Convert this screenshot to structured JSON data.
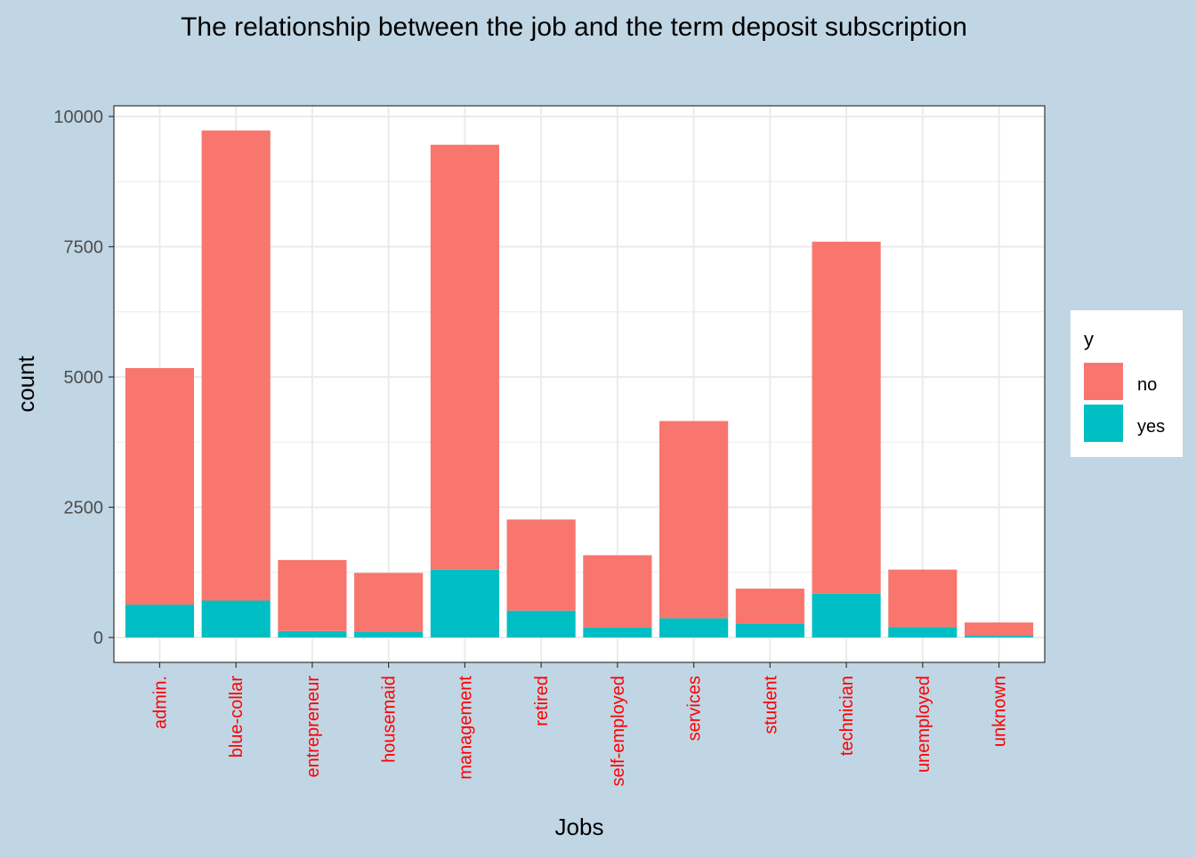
{
  "chart_data": {
    "type": "bar",
    "stacked": true,
    "title": "The relationship between the job and the term deposit subscription",
    "xlabel": "Jobs",
    "ylabel": "count",
    "categories": [
      "admin.",
      "blue-collar",
      "entrepreneur",
      "housemaid",
      "management",
      "retired",
      "self-employed",
      "services",
      "student",
      "technician",
      "unemployed",
      "unknown"
    ],
    "series": [
      {
        "name": "no",
        "color": "#f8766d",
        "values": [
          4540,
          9024,
          1364,
          1131,
          8157,
          1748,
          1392,
          3785,
          669,
          6757,
          1101,
          254
        ]
      },
      {
        "name": "yes",
        "color": "#00bfc4",
        "values": [
          631,
          708,
          123,
          109,
          1301,
          516,
          187,
          369,
          269,
          840,
          202,
          34
        ]
      }
    ],
    "ylim": [
      0,
      10000
    ],
    "yticks": [
      0,
      2500,
      5000,
      7500,
      10000
    ],
    "legend": {
      "title": "y",
      "position": "right"
    },
    "grid": true,
    "colors": {
      "background": "#c1d6e4",
      "panel": "#ffffff",
      "grid": "#ebebeb",
      "tick_label_x": "#ff0000",
      "tick_label_y": "#4d4d4d"
    }
  }
}
